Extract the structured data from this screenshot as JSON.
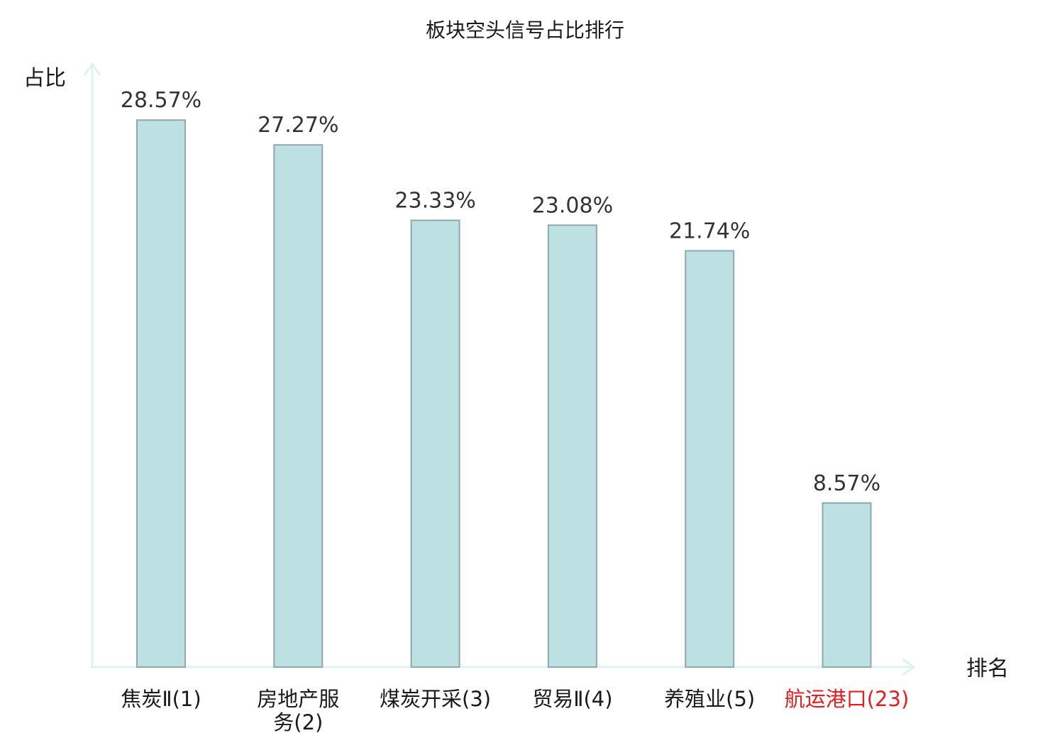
{
  "chart_data": {
    "type": "bar",
    "title": "板块空头信号占比排行",
    "xlabel": "排名",
    "ylabel": "占比",
    "ylim": [
      0,
      30
    ],
    "grid": false,
    "categories": [
      {
        "name": "焦炭Ⅱ",
        "rank": "(1)",
        "highlight": false
      },
      {
        "name": "房地产服务",
        "rank": "(2)",
        "highlight": false
      },
      {
        "name": "煤炭开采",
        "rank": "(3)",
        "highlight": false
      },
      {
        "name": "贸易Ⅱ",
        "rank": "(4)",
        "highlight": false
      },
      {
        "name": "养殖业",
        "rank": "(5)",
        "highlight": false
      },
      {
        "name": "航运港口",
        "rank": "(23)",
        "highlight": true
      }
    ],
    "values": [
      28.57,
      27.27,
      23.33,
      23.08,
      21.74,
      8.57
    ],
    "value_labels": [
      "28.57%",
      "27.27%",
      "23.33%",
      "23.08%",
      "21.74%",
      "8.57%"
    ],
    "colors": {
      "bar_fill": "#bde0e2",
      "bar_stroke": "#8fa9aa",
      "axis": "#dff2ef",
      "highlight_text": "#e02020"
    }
  }
}
